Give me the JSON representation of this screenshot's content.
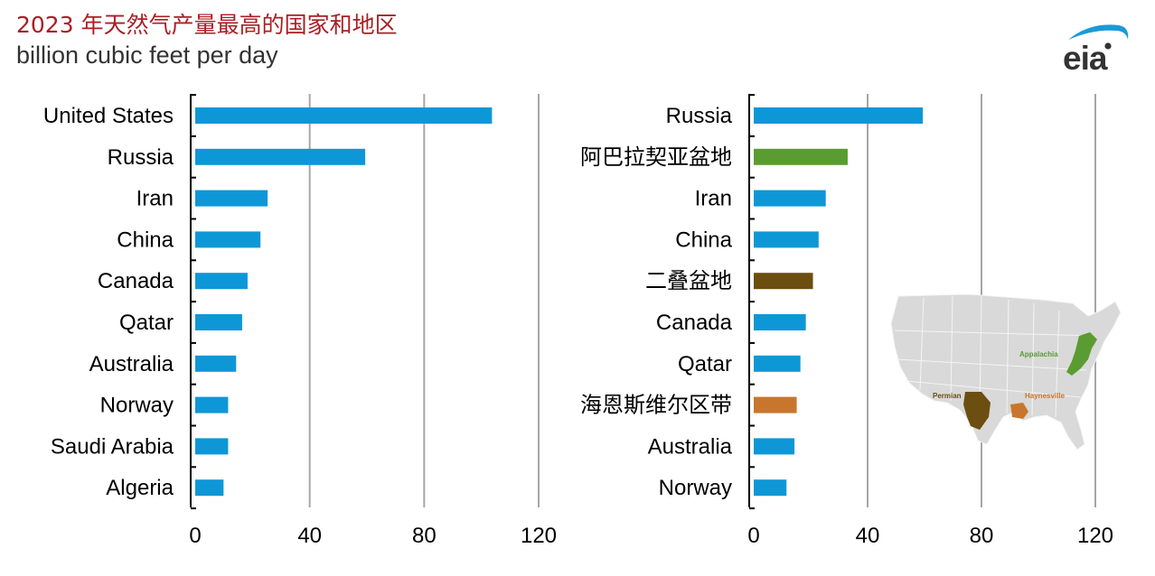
{
  "title": "2023 年天然气产量最高的国家和地区",
  "subtitle": "billion cubic feet per day",
  "logo": {
    "text": "eia",
    "icon": "eia-logo-icon"
  },
  "colors": {
    "country": "#0e97d6",
    "appalachia": "#5a9c31",
    "permian": "#6b4e10",
    "haynesville": "#c8762d",
    "grid": "#a6a6a6",
    "title": "#a81f25"
  },
  "chart_data": [
    {
      "type": "bar",
      "orientation": "horizontal",
      "categories": [
        "United States",
        "Russia",
        "Iran",
        "China",
        "Canada",
        "Qatar",
        "Australia",
        "Norway",
        "Saudi Arabia",
        "Algeria"
      ],
      "values": [
        103.7,
        59.4,
        25.3,
        22.8,
        18.3,
        16.4,
        14.3,
        11.5,
        11.5,
        9.9
      ],
      "kinds": [
        "country",
        "country",
        "country",
        "country",
        "country",
        "country",
        "country",
        "country",
        "country",
        "country"
      ],
      "xlim": [
        0,
        120
      ],
      "xticks": [
        0,
        40,
        80,
        120
      ],
      "grid": true
    },
    {
      "type": "bar",
      "orientation": "horizontal",
      "categories": [
        "Russia",
        "阿巴拉契亚盆地",
        "Iran",
        "China",
        "二叠盆地",
        "Canada",
        "Qatar",
        "海恩斯维尔区带",
        "Australia",
        "Norway"
      ],
      "values": [
        59.4,
        33.0,
        25.3,
        22.8,
        20.8,
        18.3,
        16.4,
        15.1,
        14.3,
        11.5
      ],
      "kinds": [
        "country",
        "appalachia",
        "country",
        "country",
        "permian",
        "country",
        "country",
        "haynesville",
        "country",
        "country"
      ],
      "xlim": [
        0,
        120
      ],
      "xticks": [
        0,
        40,
        80,
        120
      ],
      "grid": true
    }
  ],
  "inset_map": {
    "labels": {
      "appalachia": "Appalachia",
      "permian": "Permian",
      "haynesville": "Haynesville"
    }
  }
}
